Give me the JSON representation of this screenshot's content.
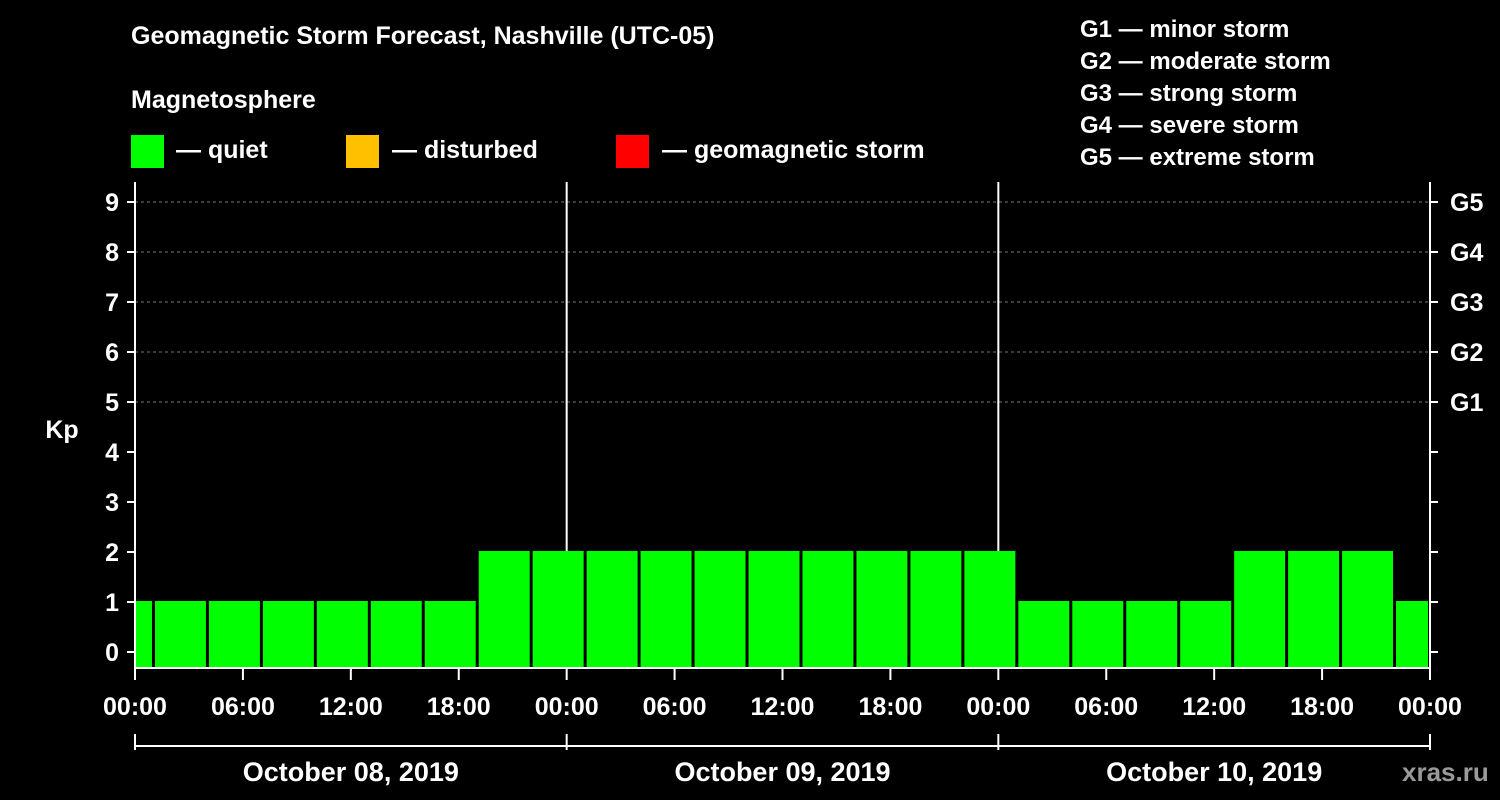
{
  "title": "Geomagnetic Storm Forecast, Nashville (UTC-05)",
  "subtitle": "Magnetosphere",
  "legend": [
    {
      "color": "#00ff00",
      "label": "— quiet"
    },
    {
      "color": "#ffc000",
      "label": "— disturbed"
    },
    {
      "color": "#ff0000",
      "label": "— geomagnetic storm"
    }
  ],
  "storm_levels": [
    "G1 — minor storm",
    "G2 — moderate storm",
    "G3 — strong storm",
    "G4 — severe storm",
    "G5 — extreme storm"
  ],
  "watermark": "xras.ru",
  "chart_data": {
    "type": "bar",
    "title": "Geomagnetic Storm Forecast, Nashville (UTC-05)",
    "ylabel": "Kp",
    "ylim": [
      0,
      9
    ],
    "yticks": [
      "0",
      "1",
      "2",
      "3",
      "4",
      "5",
      "6",
      "7",
      "8",
      "9"
    ],
    "right_axis": [
      {
        "kp": 5,
        "label": "G1"
      },
      {
        "kp": 6,
        "label": "G2"
      },
      {
        "kp": 7,
        "label": "G3"
      },
      {
        "kp": 8,
        "label": "G4"
      },
      {
        "kp": 9,
        "label": "G5"
      }
    ],
    "x_tick_labels": [
      "00:00",
      "06:00",
      "12:00",
      "18:00",
      "00:00",
      "06:00",
      "12:00",
      "18:00",
      "00:00",
      "06:00",
      "12:00",
      "18:00",
      "00:00"
    ],
    "x_range_hours": [
      0,
      72
    ],
    "day_labels": [
      "October 08, 2019",
      "October 09, 2019",
      "October 10, 2019"
    ],
    "bar_color": "#00ff00",
    "bars": [
      {
        "start": 0,
        "end": 1,
        "kp": 1
      },
      {
        "start": 1,
        "end": 4,
        "kp": 1
      },
      {
        "start": 4,
        "end": 7,
        "kp": 1
      },
      {
        "start": 7,
        "end": 10,
        "kp": 1
      },
      {
        "start": 10,
        "end": 13,
        "kp": 1
      },
      {
        "start": 13,
        "end": 16,
        "kp": 1
      },
      {
        "start": 16,
        "end": 19,
        "kp": 1
      },
      {
        "start": 19,
        "end": 22,
        "kp": 2
      },
      {
        "start": 22,
        "end": 25,
        "kp": 2
      },
      {
        "start": 25,
        "end": 28,
        "kp": 2
      },
      {
        "start": 28,
        "end": 31,
        "kp": 2
      },
      {
        "start": 31,
        "end": 34,
        "kp": 2
      },
      {
        "start": 34,
        "end": 37,
        "kp": 2
      },
      {
        "start": 37,
        "end": 40,
        "kp": 2
      },
      {
        "start": 40,
        "end": 43,
        "kp": 2
      },
      {
        "start": 43,
        "end": 46,
        "kp": 2
      },
      {
        "start": 46,
        "end": 49,
        "kp": 2
      },
      {
        "start": 49,
        "end": 52,
        "kp": 1
      },
      {
        "start": 52,
        "end": 55,
        "kp": 1
      },
      {
        "start": 55,
        "end": 58,
        "kp": 1
      },
      {
        "start": 58,
        "end": 61,
        "kp": 1
      },
      {
        "start": 61,
        "end": 64,
        "kp": 2
      },
      {
        "start": 64,
        "end": 67,
        "kp": 2
      },
      {
        "start": 67,
        "end": 70,
        "kp": 2
      },
      {
        "start": 70,
        "end": 72,
        "kp": 1
      }
    ]
  }
}
